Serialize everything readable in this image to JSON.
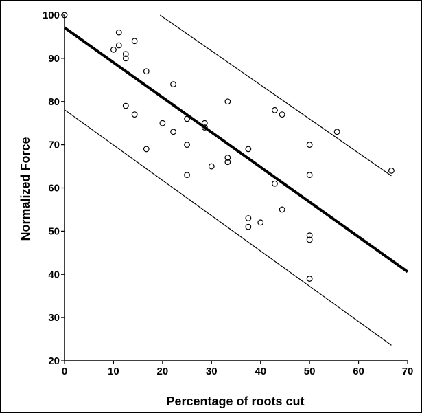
{
  "chart_data": {
    "type": "scatter",
    "xlabel": "Percentage of roots cut",
    "ylabel": "Normalized Force",
    "xlim": [
      0,
      70
    ],
    "ylim": [
      20,
      100
    ],
    "xticks": [
      0,
      10,
      20,
      30,
      40,
      50,
      60,
      70
    ],
    "yticks": [
      20,
      30,
      40,
      50,
      60,
      70,
      80,
      90,
      100
    ],
    "grid": false,
    "points": [
      {
        "x": 0,
        "y": 100
      },
      {
        "x": 10,
        "y": 92
      },
      {
        "x": 11.1,
        "y": 96
      },
      {
        "x": 11.1,
        "y": 93
      },
      {
        "x": 12.5,
        "y": 91
      },
      {
        "x": 12.5,
        "y": 90
      },
      {
        "x": 12.5,
        "y": 79
      },
      {
        "x": 14.3,
        "y": 94
      },
      {
        "x": 14.3,
        "y": 77
      },
      {
        "x": 16.7,
        "y": 87
      },
      {
        "x": 16.7,
        "y": 69
      },
      {
        "x": 20,
        "y": 75
      },
      {
        "x": 22.2,
        "y": 84
      },
      {
        "x": 22.2,
        "y": 73
      },
      {
        "x": 25,
        "y": 76
      },
      {
        "x": 25,
        "y": 70
      },
      {
        "x": 25,
        "y": 63
      },
      {
        "x": 28.6,
        "y": 75
      },
      {
        "x": 28.6,
        "y": 74
      },
      {
        "x": 30,
        "y": 65
      },
      {
        "x": 33.3,
        "y": 80
      },
      {
        "x": 33.3,
        "y": 67
      },
      {
        "x": 33.3,
        "y": 66
      },
      {
        "x": 37.5,
        "y": 69
      },
      {
        "x": 37.5,
        "y": 53
      },
      {
        "x": 37.5,
        "y": 51
      },
      {
        "x": 40,
        "y": 52
      },
      {
        "x": 42.9,
        "y": 78
      },
      {
        "x": 42.9,
        "y": 61
      },
      {
        "x": 44.4,
        "y": 77
      },
      {
        "x": 44.4,
        "y": 55
      },
      {
        "x": 50,
        "y": 70
      },
      {
        "x": 50,
        "y": 63
      },
      {
        "x": 50,
        "y": 49
      },
      {
        "x": 50,
        "y": 48
      },
      {
        "x": 50,
        "y": 39
      },
      {
        "x": 55.6,
        "y": 73
      },
      {
        "x": 66.7,
        "y": 64
      }
    ],
    "lines": [
      {
        "role": "fit",
        "from": [
          0,
          97.1
        ],
        "to": [
          70,
          40.6
        ]
      },
      {
        "role": "upper-bound",
        "from": [
          19.5,
          100
        ],
        "to": [
          66.7,
          62.8
        ]
      },
      {
        "role": "lower-bound",
        "from": [
          0,
          78.1
        ],
        "to": [
          66.7,
          23.6
        ]
      }
    ]
  }
}
